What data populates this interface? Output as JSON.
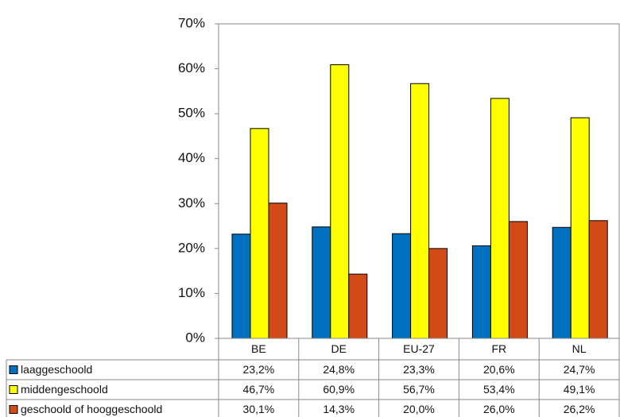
{
  "chart_data": {
    "type": "bar",
    "categories": [
      "BE",
      "DE",
      "EU-27",
      "FR",
      "NL"
    ],
    "series": [
      {
        "name": "laaggeschoold",
        "color": "#0070c0",
        "values": [
          23.2,
          24.8,
          23.3,
          20.6,
          24.7
        ],
        "value_labels": [
          "23,2%",
          "24,8%",
          "23,3%",
          "20,6%",
          "24,7%"
        ]
      },
      {
        "name": "middengeschoold",
        "color": "#ffff00",
        "values": [
          46.7,
          60.9,
          56.7,
          53.4,
          49.1
        ],
        "value_labels": [
          "46,7%",
          "60,9%",
          "56,7%",
          "53,4%",
          "49,1%"
        ]
      },
      {
        "name": "geschoold of hooggeschoold",
        "color": "#d24b16",
        "values": [
          30.1,
          14.3,
          20.0,
          26.0,
          26.2
        ],
        "value_labels": [
          "30,1%",
          "14,3%",
          "20,0%",
          "26,0%",
          "26,2%"
        ]
      }
    ],
    "ylim": [
      0,
      70
    ],
    "yticks": [
      {
        "value": 0,
        "label": "0%"
      },
      {
        "value": 10,
        "label": "10%"
      },
      {
        "value": 20,
        "label": "20%"
      },
      {
        "value": 30,
        "label": "30%"
      },
      {
        "value": 40,
        "label": "40%"
      },
      {
        "value": 50,
        "label": "50%"
      },
      {
        "value": 60,
        "label": "60%"
      },
      {
        "value": 70,
        "label": "70%"
      }
    ],
    "grid": false
  }
}
